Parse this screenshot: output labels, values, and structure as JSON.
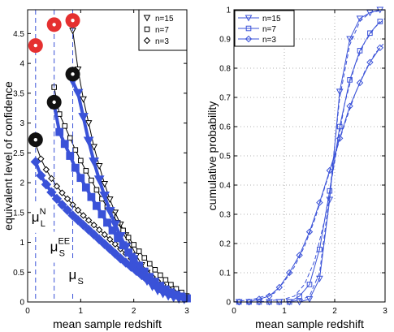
{
  "chart_data": [
    {
      "type": "line",
      "xlabel": "mean sample redshift",
      "ylabel": "equivalent level of confidence",
      "xlim": [
        0,
        3
      ],
      "ylim": [
        0,
        4.9
      ],
      "xticks": [
        "0",
        "1",
        "2",
        "3"
      ],
      "yticks": [
        "0",
        "0.5",
        "1",
        "1.5",
        "2",
        "2.5",
        "3",
        "3.5",
        "4",
        "4.5"
      ],
      "legend_position": "top-right",
      "legend": [
        {
          "label": "n=15",
          "marker": "triangle-down"
        },
        {
          "label": "n=7",
          "marker": "square"
        },
        {
          "label": "n=3",
          "marker": "diamond"
        }
      ],
      "series": [
        {
          "name": "n=15",
          "style": "thin",
          "marker": "triangle-down",
          "x": [
            0.85,
            0.95,
            1.05,
            1.15,
            1.25,
            1.35,
            1.45,
            1.55,
            1.65,
            1.75,
            1.85,
            1.95,
            2.05,
            2.15,
            2.25,
            2.35,
            2.45,
            2.55,
            2.65,
            2.75,
            2.85,
            2.95
          ],
          "y": [
            4.55,
            3.9,
            3.4,
            3.0,
            2.6,
            2.28,
            1.98,
            1.72,
            1.5,
            1.3,
            1.12,
            0.95,
            0.78,
            0.62,
            0.49,
            0.38,
            0.29,
            0.22,
            0.16,
            0.12,
            0.09,
            0.06
          ]
        },
        {
          "name": "n=7",
          "style": "thin",
          "marker": "square",
          "x": [
            0.5,
            0.6,
            0.7,
            0.8,
            0.9,
            1.0,
            1.1,
            1.2,
            1.3,
            1.4,
            1.5,
            1.6,
            1.7,
            1.8,
            1.9,
            2.0,
            2.1,
            2.2,
            2.3,
            2.4,
            2.5,
            2.6,
            2.7,
            2.8,
            2.9,
            3.0
          ],
          "y": [
            3.6,
            3.15,
            2.95,
            2.75,
            2.55,
            2.37,
            2.2,
            2.04,
            1.88,
            1.73,
            1.59,
            1.46,
            1.33,
            1.2,
            1.08,
            0.96,
            0.85,
            0.74,
            0.64,
            0.54,
            0.45,
            0.37,
            0.29,
            0.22,
            0.16,
            0.1
          ]
        },
        {
          "name": "n=3",
          "style": "thin",
          "marker": "diamond",
          "x": [
            0.15,
            0.25,
            0.35,
            0.45,
            0.55,
            0.65,
            0.75,
            0.85,
            0.95,
            1.05,
            1.15,
            1.25,
            1.35,
            1.45,
            1.55,
            1.65,
            1.75,
            1.85,
            1.95,
            2.05,
            2.15,
            2.25,
            2.35,
            2.45,
            2.55,
            2.65,
            2.75,
            2.85,
            2.95
          ],
          "y": [
            2.65,
            2.4,
            2.22,
            2.07,
            1.94,
            1.83,
            1.73,
            1.63,
            1.54,
            1.45,
            1.37,
            1.29,
            1.21,
            1.13,
            1.05,
            0.97,
            0.89,
            0.81,
            0.73,
            0.65,
            0.57,
            0.49,
            0.42,
            0.35,
            0.29,
            0.23,
            0.18,
            0.13,
            0.09
          ]
        },
        {
          "name": "",
          "style": "thick",
          "marker": "triangle-down",
          "x": [
            0.85,
            0.95,
            1.05,
            1.15,
            1.25,
            1.35,
            1.45,
            1.55,
            1.65,
            1.75,
            1.85,
            1.95,
            2.05,
            2.15,
            2.25,
            2.35,
            2.45,
            2.55,
            2.65,
            2.75,
            2.85,
            2.95
          ],
          "y": [
            3.7,
            3.5,
            3.1,
            2.7,
            2.35,
            2.05,
            1.78,
            1.52,
            1.3,
            1.1,
            0.92,
            0.75,
            0.6,
            0.47,
            0.36,
            0.27,
            0.2,
            0.15,
            0.11,
            0.08,
            0.06,
            0.05
          ]
        },
        {
          "name": "",
          "style": "thick",
          "marker": "square",
          "x": [
            0.5,
            0.6,
            0.7,
            0.8,
            0.9,
            1.0,
            1.1,
            1.2,
            1.3,
            1.4,
            1.5,
            1.6,
            1.7,
            1.8,
            1.9,
            2.0,
            2.1,
            2.2,
            2.3,
            2.4,
            2.5,
            2.6,
            2.7,
            2.8,
            2.9,
            3.0
          ],
          "y": [
            3.3,
            2.85,
            2.65,
            2.45,
            2.25,
            2.08,
            1.92,
            1.76,
            1.61,
            1.47,
            1.33,
            1.2,
            1.07,
            0.95,
            0.83,
            0.72,
            0.61,
            0.51,
            0.42,
            0.34,
            0.27,
            0.21,
            0.16,
            0.12,
            0.09,
            0.06
          ]
        },
        {
          "name": "",
          "style": "thick",
          "marker": "diamond",
          "x": [
            0.15,
            0.25,
            0.35,
            0.45,
            0.55,
            0.65,
            0.75,
            0.85,
            0.95,
            1.05,
            1.15,
            1.25,
            1.35,
            1.45,
            1.55,
            1.65,
            1.75,
            1.85,
            1.95,
            2.05,
            2.15,
            2.25,
            2.35,
            2.45,
            2.55,
            2.65,
            2.75,
            2.85,
            2.95
          ],
          "y": [
            2.35,
            2.12,
            1.97,
            1.84,
            1.73,
            1.63,
            1.54,
            1.45,
            1.37,
            1.29,
            1.21,
            1.13,
            1.05,
            0.97,
            0.89,
            0.81,
            0.73,
            0.66,
            0.59,
            0.52,
            0.45,
            0.38,
            0.32,
            0.26,
            0.21,
            0.16,
            0.12,
            0.09,
            0.06
          ]
        }
      ],
      "highlight_points": [
        {
          "x": 0.15,
          "y": 4.3,
          "color": "#e53030"
        },
        {
          "x": 0.5,
          "y": 4.65,
          "color": "#e53030"
        },
        {
          "x": 0.85,
          "y": 4.72,
          "color": "#e53030"
        },
        {
          "x": 0.15,
          "y": 2.72,
          "color": "#111111"
        },
        {
          "x": 0.5,
          "y": 3.35,
          "color": "#111111"
        },
        {
          "x": 0.85,
          "y": 3.82,
          "color": "#111111"
        }
      ],
      "reference_lines": [
        {
          "x": 0.15,
          "label": "μ",
          "sup": "N",
          "sub": "L",
          "label_y": 1.35
        },
        {
          "x": 0.5,
          "label": "μ",
          "sup": "EE",
          "sub": "S",
          "label_y": 0.85
        },
        {
          "x": 0.85,
          "label": "μ",
          "sup": "",
          "sub": "S",
          "label_y": 0.38
        }
      ]
    },
    {
      "type": "line",
      "xlabel": "mean sample redshift",
      "ylabel": "cumulative probability",
      "xlim": [
        0,
        3
      ],
      "ylim": [
        0,
        1
      ],
      "xticks": [
        "0",
        "1",
        "2",
        "3"
      ],
      "yticks": [
        "0",
        "0.1",
        "0.2",
        "0.3",
        "0.4",
        "0.5",
        "0.6",
        "0.7",
        "0.8",
        "0.9",
        "1"
      ],
      "grid": true,
      "legend_position": "top-left",
      "legend": [
        {
          "label": "n=15",
          "marker": "triangle-down"
        },
        {
          "label": "n=7",
          "marker": "square"
        },
        {
          "label": "n=3",
          "marker": "diamond"
        }
      ],
      "series": [
        {
          "name": "n=15",
          "marker": "triangle-down",
          "x": [
            0.1,
            0.3,
            0.5,
            0.7,
            0.9,
            1.1,
            1.3,
            1.5,
            1.7,
            1.9,
            2.1,
            2.3,
            2.5,
            2.7,
            2.9
          ],
          "y": [
            0,
            0,
            0,
            0,
            0,
            0,
            0,
            0.01,
            0.08,
            0.35,
            0.72,
            0.9,
            0.97,
            0.99,
            1.0
          ]
        },
        {
          "name": "n=7",
          "marker": "square",
          "x": [
            0.1,
            0.3,
            0.5,
            0.7,
            0.9,
            1.1,
            1.3,
            1.5,
            1.7,
            1.9,
            2.1,
            2.3,
            2.5,
            2.7,
            2.9
          ],
          "y": [
            0,
            0,
            0,
            0,
            0,
            0,
            0.02,
            0.06,
            0.18,
            0.38,
            0.6,
            0.76,
            0.86,
            0.92,
            0.96
          ]
        },
        {
          "name": "n=3",
          "marker": "diamond",
          "x": [
            0.1,
            0.3,
            0.5,
            0.7,
            0.9,
            1.1,
            1.3,
            1.5,
            1.7,
            1.9,
            2.1,
            2.3,
            2.5,
            2.7,
            2.9
          ],
          "y": [
            0,
            0,
            0.01,
            0.02,
            0.05,
            0.1,
            0.16,
            0.24,
            0.34,
            0.45,
            0.56,
            0.67,
            0.75,
            0.82,
            0.87
          ]
        },
        {
          "name": "",
          "marker": "none",
          "dashed": true,
          "x": [
            0,
            0.5,
            1.0,
            1.3,
            1.5,
            1.7,
            1.9,
            2.1,
            2.3,
            2.5,
            2.7,
            3.0
          ],
          "y": [
            0,
            0,
            0,
            0.005,
            0.02,
            0.1,
            0.37,
            0.7,
            0.88,
            0.96,
            0.99,
            1.0
          ]
        },
        {
          "name": "",
          "marker": "none",
          "dashed": true,
          "x": [
            0,
            0.5,
            1.0,
            1.2,
            1.4,
            1.6,
            1.8,
            2.0,
            2.2,
            2.4,
            2.6,
            2.8,
            3.0
          ],
          "y": [
            0,
            0,
            0.01,
            0.02,
            0.06,
            0.14,
            0.28,
            0.48,
            0.68,
            0.81,
            0.89,
            0.94,
            0.97
          ]
        },
        {
          "name": "",
          "marker": "none",
          "dashed": true,
          "x": [
            0,
            0.4,
            0.8,
            1.0,
            1.2,
            1.4,
            1.6,
            1.8,
            2.0,
            2.2,
            2.4,
            2.6,
            2.8,
            3.0
          ],
          "y": [
            0,
            0.01,
            0.03,
            0.07,
            0.12,
            0.19,
            0.28,
            0.39,
            0.5,
            0.61,
            0.71,
            0.79,
            0.85,
            0.89
          ]
        }
      ]
    }
  ],
  "colors": {
    "line": "#3a52d8",
    "axis": "#000000",
    "red_marker": "#e53030",
    "black_marker": "#111111"
  }
}
